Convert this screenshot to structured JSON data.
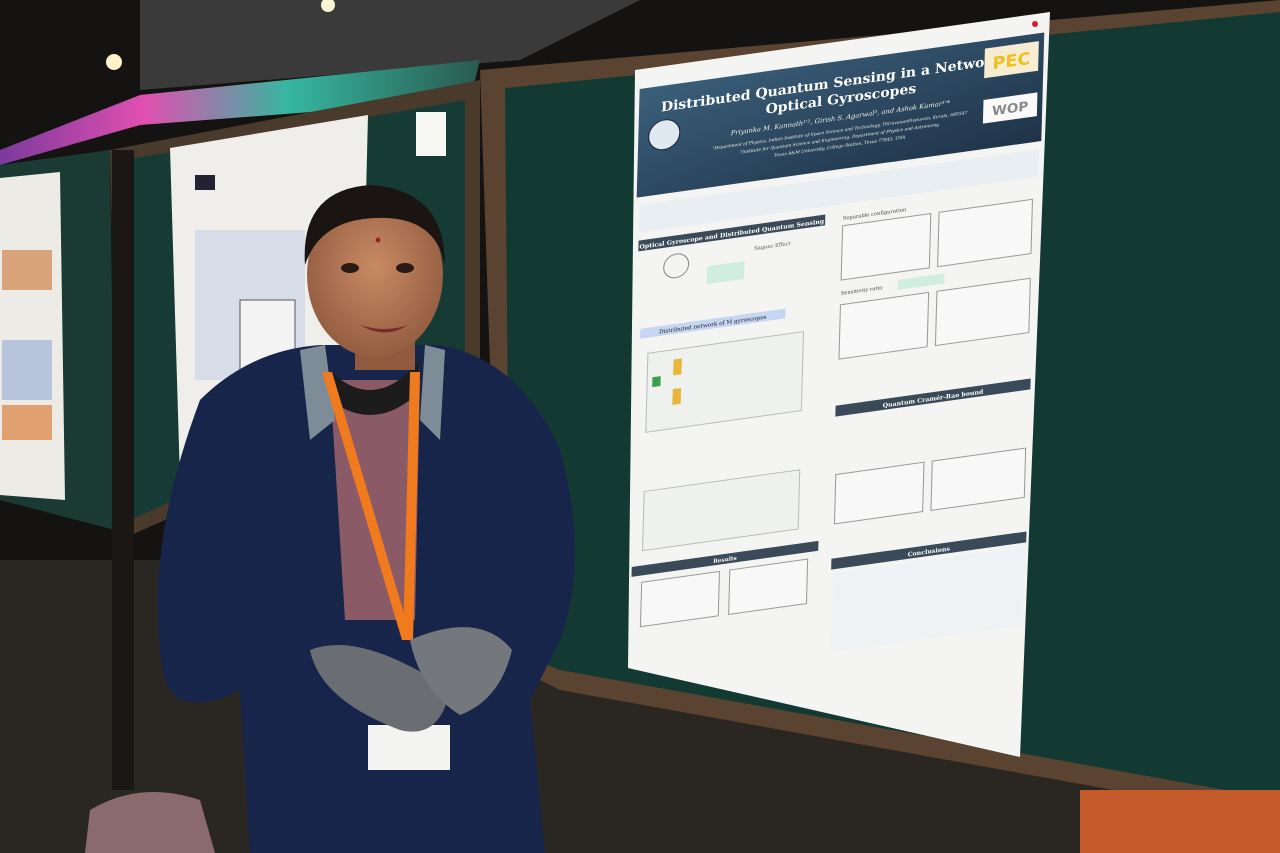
{
  "poster": {
    "title_line1": "Distributed Quantum Sensing in a Network of",
    "title_line2": "Optical Gyroscopes",
    "authors": "Priyanka M. Kannath¹'², Girish S. Agarwal³, and Ashok Kumar¹'*",
    "affiliation1": "¹Department of Physics, Indian Institute of Space Science and Technology, Thiruvananthapuram, Kerala, 695547",
    "affiliation2": "²Institute for Quantum Science and Engineering, Department of Physics and Astronomy,",
    "affiliation3": "Texas A&M University, College Station, Texas 77843, USA",
    "logo_right_top": "PEC",
    "logo_right_bottom": "WOP",
    "sections": {
      "s1": "Optical Gyroscope and Distributed Quantum Sensing",
      "s1b": "Sagnac Effect",
      "s2": "Distributed network of M gyroscopes",
      "s3": "Separable configuration",
      "s4": "Sensitivity ratio",
      "s5": "Quantum Cramér-Rao bound",
      "s6": "Results",
      "s7": "Conclusions"
    }
  },
  "colors": {
    "board": "#123a33",
    "jacket": "#18254a",
    "lanyard": "#f07a1e",
    "poster_header": "#2c4a63"
  }
}
